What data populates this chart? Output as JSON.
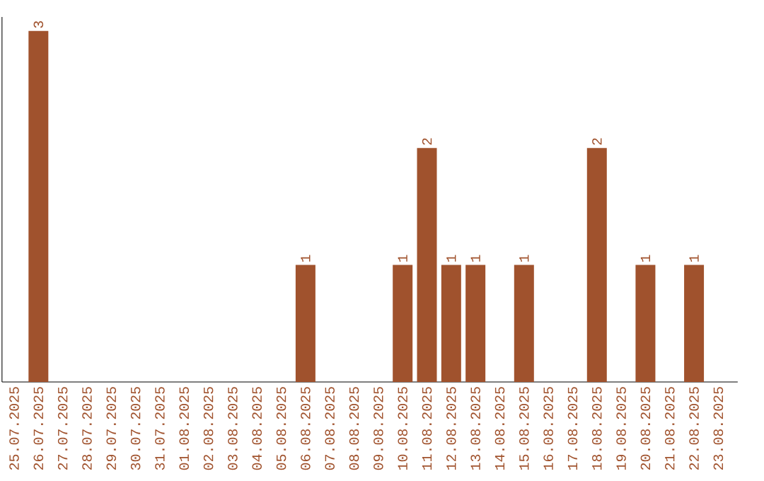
{
  "chart_data": {
    "type": "bar",
    "categories": [
      "25.07.2025",
      "26.07.2025",
      "27.07.2025",
      "28.07.2025",
      "29.07.2025",
      "30.07.2025",
      "31.07.2025",
      "01.08.2025",
      "02.08.2025",
      "03.08.2025",
      "04.08.2025",
      "05.08.2025",
      "06.08.2025",
      "07.08.2025",
      "08.08.2025",
      "09.08.2025",
      "10.08.2025",
      "11.08.2025",
      "12.08.2025",
      "13.08.2025",
      "14.08.2025",
      "15.08.2025",
      "16.08.2025",
      "17.08.2025",
      "18.08.2025",
      "19.08.2025",
      "20.08.2025",
      "21.08.2025",
      "22.08.2025",
      "23.08.2025"
    ],
    "values": [
      0,
      3,
      0,
      0,
      0,
      0,
      0,
      0,
      0,
      0,
      0,
      0,
      1,
      0,
      0,
      0,
      1,
      2,
      1,
      1,
      0,
      1,
      0,
      0,
      2,
      0,
      1,
      0,
      1,
      0
    ],
    "value_labels": [
      null,
      "3",
      null,
      null,
      null,
      null,
      null,
      null,
      null,
      null,
      null,
      null,
      "1",
      null,
      null,
      null,
      "1",
      "2",
      "1",
      "1",
      null,
      "1",
      null,
      null,
      "2",
      null,
      "1",
      null,
      "1",
      null
    ],
    "color": "#a0522d",
    "tick_labels": "x"
  }
}
